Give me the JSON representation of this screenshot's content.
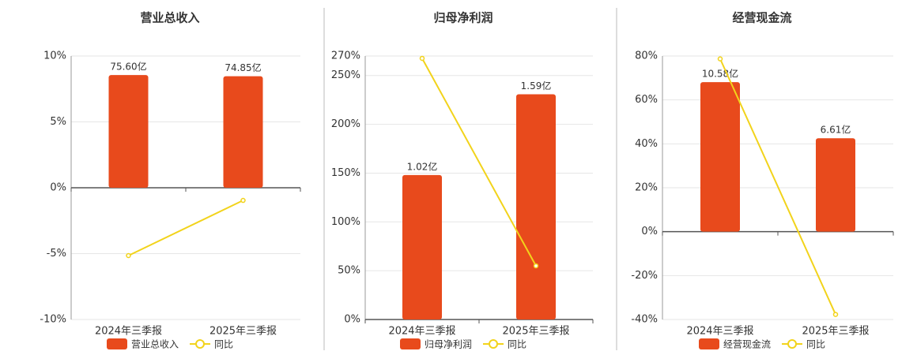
{
  "chart_data": [
    {
      "type": "bar",
      "title": "营业总收入",
      "categories": [
        "2024年三季报",
        "2025年三季报"
      ],
      "series": [
        {
          "name": "营业总收入",
          "type": "bar",
          "axis": "y2",
          "color": "#e84a1c",
          "values": [
            75.6,
            74.85
          ],
          "value_labels": [
            "75.60亿",
            "74.85亿"
          ]
        },
        {
          "name": "同比",
          "type": "line",
          "color": "#f2d31b",
          "values": [
            -5.15,
            -0.96
          ]
        }
      ],
      "ylim": [
        -10,
        10
      ],
      "yticks": [
        {
          "value": -10,
          "label": "-10%"
        },
        {
          "value": -5,
          "label": "-5%"
        },
        {
          "value": 0,
          "label": "0%"
        },
        {
          "value": 5,
          "label": "5%"
        },
        {
          "value": 10,
          "label": "10%"
        }
      ],
      "y2lim": [
        -88.4,
        88.4
      ],
      "grid": true
    },
    {
      "type": "bar",
      "title": "归母净利润",
      "categories": [
        "2024年三季报",
        "2025年三季报"
      ],
      "series": [
        {
          "name": "归母净利润",
          "type": "bar",
          "axis": "y2",
          "color": "#e84a1c",
          "values": [
            1.02,
            1.59
          ],
          "value_labels": [
            "1.02亿",
            "1.59亿"
          ]
        },
        {
          "name": "同比",
          "type": "line",
          "color": "#f2d31b",
          "values": [
            267.6,
            55
          ]
        }
      ],
      "ylim": [
        0,
        270
      ],
      "yticks": [
        {
          "value": 0,
          "label": "0%"
        },
        {
          "value": 50,
          "label": "50%"
        },
        {
          "value": 100,
          "label": "100%"
        },
        {
          "value": 150,
          "label": "150%"
        },
        {
          "value": 200,
          "label": "200%"
        },
        {
          "value": 250,
          "label": "250%"
        },
        {
          "value": 270,
          "label": "270%"
        }
      ],
      "y2lim": [
        0,
        1.86
      ],
      "grid": true
    },
    {
      "type": "bar",
      "title": "经营现金流",
      "categories": [
        "2024年三季报",
        "2025年三季报"
      ],
      "series": [
        {
          "name": "经营现金流",
          "type": "bar",
          "axis": "y2",
          "color": "#e84a1c",
          "values": [
            10.58,
            6.61
          ],
          "value_labels": [
            "10.58亿",
            "6.61亿"
          ]
        },
        {
          "name": "同比",
          "type": "line",
          "color": "#f2d31b",
          "values": [
            78.7,
            -37.7
          ]
        }
      ],
      "ylim": [
        -40,
        80
      ],
      "yticks": [
        {
          "value": -40,
          "label": "-40%"
        },
        {
          "value": -20,
          "label": "-20%"
        },
        {
          "value": 0,
          "label": "0%"
        },
        {
          "value": 20,
          "label": "20%"
        },
        {
          "value": 40,
          "label": "40%"
        },
        {
          "value": 60,
          "label": "60%"
        },
        {
          "value": 80,
          "label": "80%"
        }
      ],
      "y2lim": [
        -6.22,
        12.43
      ],
      "grid": true
    }
  ]
}
